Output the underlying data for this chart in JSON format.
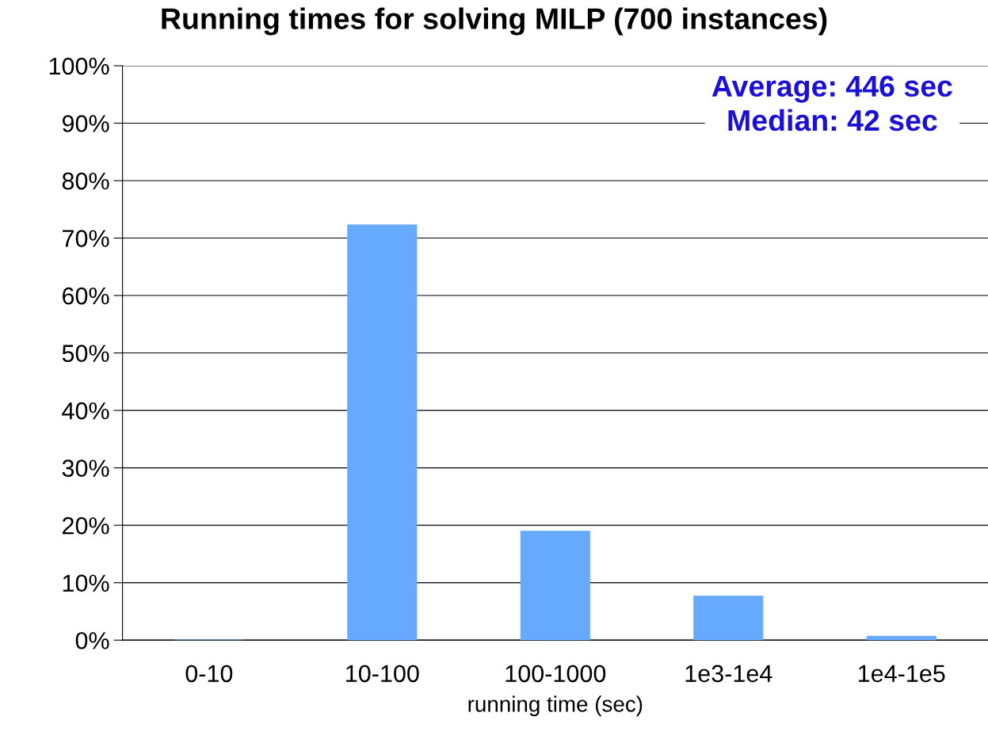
{
  "chart_data": {
    "type": "bar",
    "title": "Running times for solving MILP (700 instances)",
    "xlabel": "running time (sec)",
    "categories": [
      "0-10",
      "10-100",
      "100-1000",
      "1e3-1e4",
      "1e4-1e5"
    ],
    "values": [
      0,
      72.3,
      19.0,
      7.7,
      0.7
    ],
    "color": "#66aaff",
    "ylim": [
      0,
      100
    ],
    "yticks": [
      {
        "value": 0,
        "label": "0%"
      },
      {
        "value": 10,
        "label": "10%"
      },
      {
        "value": 20,
        "label": "20%"
      },
      {
        "value": 30,
        "label": "30%"
      },
      {
        "value": 40,
        "label": "40%"
      },
      {
        "value": 50,
        "label": "50%"
      },
      {
        "value": 60,
        "label": "60%"
      },
      {
        "value": 70,
        "label": "70%"
      },
      {
        "value": 80,
        "label": "80%"
      },
      {
        "value": 90,
        "label": "90%"
      },
      {
        "value": 100,
        "label": "100%"
      }
    ],
    "grid": "y",
    "annotations": [
      "Average: 446 sec\nMedian: 42 sec"
    ]
  }
}
